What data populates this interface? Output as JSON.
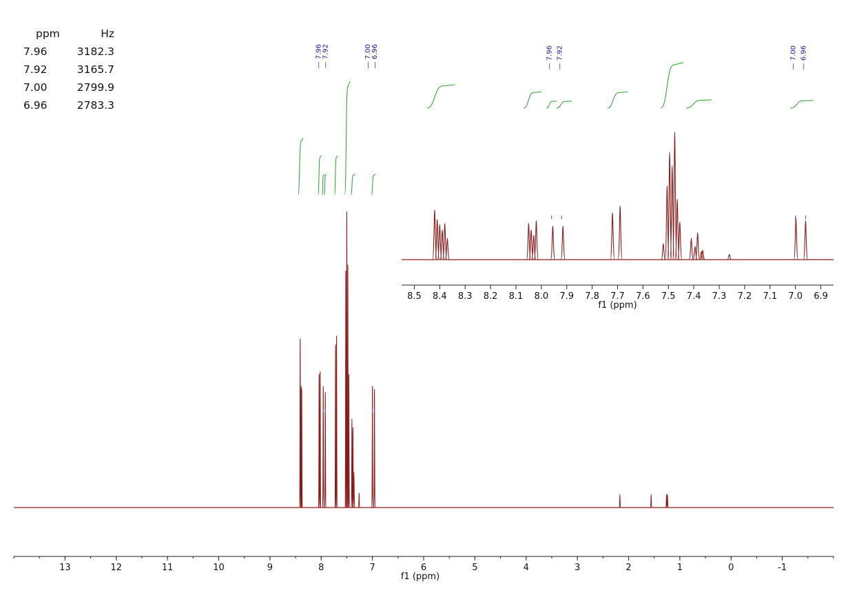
{
  "peak_table": {
    "headers": [
      "ppm",
      "Hz"
    ],
    "rows": [
      [
        "7.96",
        "3182.3"
      ],
      [
        "7.92",
        "3165.7"
      ],
      [
        "7.00",
        "2799.9"
      ],
      [
        "6.96",
        "2783.3"
      ]
    ]
  },
  "chart_data": [
    {
      "type": "line",
      "title": "",
      "xlabel": "f1 (ppm)",
      "ylabel": "",
      "xlim": [
        14,
        -2
      ],
      "x_reversed": true,
      "xticks": [
        "13",
        "12",
        "11",
        "10",
        "9",
        "8",
        "7",
        "6",
        "5",
        "4",
        "3",
        "2",
        "1",
        "0",
        "-1"
      ],
      "peak_labels": [
        {
          "group": [
            "7.96",
            "7.92"
          ],
          "x": [
            7.96,
            7.92
          ]
        },
        {
          "group": [
            "7.00",
            "6.96"
          ],
          "x": [
            7.0,
            6.96
          ]
        }
      ],
      "peaks": [
        {
          "x": 8.41,
          "h": 0.57
        },
        {
          "x": 8.39,
          "h": 0.41
        },
        {
          "x": 8.38,
          "h": 0.4
        },
        {
          "x": 8.04,
          "h": 0.45
        },
        {
          "x": 8.02,
          "h": 0.46
        },
        {
          "x": 7.96,
          "h": 0.41
        },
        {
          "x": 7.92,
          "h": 0.39
        },
        {
          "x": 7.72,
          "h": 0.55
        },
        {
          "x": 7.7,
          "h": 0.58
        },
        {
          "x": 7.52,
          "h": 0.8
        },
        {
          "x": 7.5,
          "h": 1.0
        },
        {
          "x": 7.48,
          "h": 0.82
        },
        {
          "x": 7.46,
          "h": 0.45
        },
        {
          "x": 7.4,
          "h": 0.3
        },
        {
          "x": 7.38,
          "h": 0.27
        },
        {
          "x": 7.36,
          "h": 0.12
        },
        {
          "x": 7.26,
          "h": 0.05
        },
        {
          "x": 7.0,
          "h": 0.41
        },
        {
          "x": 6.96,
          "h": 0.4
        },
        {
          "x": 2.17,
          "h": 0.045
        },
        {
          "x": 1.56,
          "h": 0.045
        },
        {
          "x": 1.26,
          "h": 0.045
        },
        {
          "x": 1.24,
          "h": 0.045
        }
      ],
      "integrals": [
        {
          "from": 8.45,
          "to": 8.35,
          "rise": 0.55
        },
        {
          "from": 8.06,
          "to": 8.0,
          "rise": 0.38
        },
        {
          "from": 7.98,
          "to": 7.94,
          "rise": 0.2
        },
        {
          "from": 7.94,
          "to": 7.9,
          "rise": 0.2
        },
        {
          "from": 7.74,
          "to": 7.68,
          "rise": 0.38
        },
        {
          "from": 7.54,
          "to": 7.44,
          "rise": 1.1
        },
        {
          "from": 7.42,
          "to": 7.34,
          "rise": 0.2
        },
        {
          "from": 7.02,
          "to": 6.94,
          "rise": 0.2
        }
      ]
    },
    {
      "type": "line",
      "title": "",
      "xlabel": "f1 (ppm)",
      "ylabel": "",
      "xlim": [
        8.55,
        6.85
      ],
      "x_reversed": true,
      "xticks": [
        "8.5",
        "8.4",
        "8.3",
        "8.2",
        "8.1",
        "8.0",
        "7.9",
        "7.8",
        "7.7",
        "7.6",
        "7.5",
        "7.4",
        "7.3",
        "7.2",
        "7.1",
        "7.0",
        "6.9"
      ],
      "peak_labels": [
        {
          "group": [
            "7.96"
          ],
          "x": [
            7.96
          ]
        },
        {
          "group": [
            "7.92"
          ],
          "x": [
            7.92
          ]
        },
        {
          "group": [
            "7.00"
          ],
          "x": [
            7.0
          ]
        },
        {
          "group": [
            "6.96"
          ],
          "x": [
            6.96
          ]
        }
      ],
      "peaks": [
        {
          "x": 8.42,
          "h": 0.37
        },
        {
          "x": 8.41,
          "h": 0.3
        },
        {
          "x": 8.4,
          "h": 0.26
        },
        {
          "x": 8.39,
          "h": 0.22
        },
        {
          "x": 8.38,
          "h": 0.27
        },
        {
          "x": 8.37,
          "h": 0.16
        },
        {
          "x": 8.05,
          "h": 0.27
        },
        {
          "x": 8.04,
          "h": 0.22
        },
        {
          "x": 8.03,
          "h": 0.18
        },
        {
          "x": 8.02,
          "h": 0.29
        },
        {
          "x": 7.955,
          "h": 0.25
        },
        {
          "x": 7.915,
          "h": 0.25
        },
        {
          "x": 7.72,
          "h": 0.35
        },
        {
          "x": 7.69,
          "h": 0.4
        },
        {
          "x": 7.52,
          "h": 0.12
        },
        {
          "x": 7.505,
          "h": 0.55
        },
        {
          "x": 7.495,
          "h": 0.8
        },
        {
          "x": 7.485,
          "h": 0.7
        },
        {
          "x": 7.475,
          "h": 0.95
        },
        {
          "x": 7.465,
          "h": 0.45
        },
        {
          "x": 7.455,
          "h": 0.28
        },
        {
          "x": 7.41,
          "h": 0.16
        },
        {
          "x": 7.395,
          "h": 0.1
        },
        {
          "x": 7.385,
          "h": 0.2
        },
        {
          "x": 7.37,
          "h": 0.06
        },
        {
          "x": 7.365,
          "h": 0.07
        },
        {
          "x": 7.26,
          "h": 0.04
        },
        {
          "x": 6.998,
          "h": 0.31
        },
        {
          "x": 6.96,
          "h": 0.29
        }
      ],
      "integrals": [
        {
          "from": 8.45,
          "to": 8.34,
          "rise": 1.0
        },
        {
          "from": 8.07,
          "to": 8.0,
          "rise": 0.7
        },
        {
          "from": 7.98,
          "to": 7.94,
          "rise": 0.3
        },
        {
          "from": 7.94,
          "to": 7.88,
          "rise": 0.3
        },
        {
          "from": 7.74,
          "to": 7.66,
          "rise": 0.7
        },
        {
          "from": 7.53,
          "to": 7.44,
          "rise": 1.95
        },
        {
          "from": 7.43,
          "to": 7.33,
          "rise": 0.35
        },
        {
          "from": 7.02,
          "to": 6.93,
          "rise": 0.33
        }
      ]
    }
  ]
}
